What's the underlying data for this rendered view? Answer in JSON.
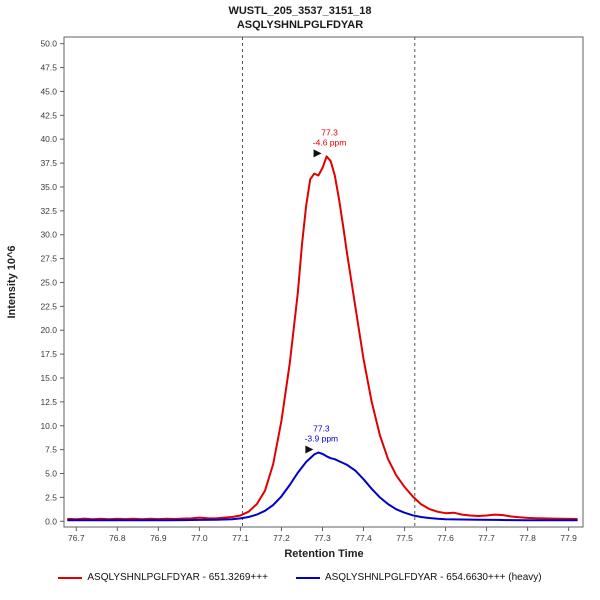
{
  "header": {
    "title_line1": "WUSTL_205_3537_3151_18",
    "title_line2": "ASQLYSHNLPGLFDYAR"
  },
  "chart_data": {
    "type": "line",
    "title": "WUSTL_205_3537_3151_18",
    "subtitle": "ASQLYSHNLPGLFDYAR",
    "xlabel": "Retention Time",
    "ylabel": "Intensity 10^6",
    "xlim": [
      76.7,
      77.9
    ],
    "ylim": [
      0,
      50
    ],
    "x_ticks": [
      76.7,
      76.8,
      76.9,
      77.0,
      77.1,
      77.2,
      77.3,
      77.4,
      77.5,
      77.6,
      77.7,
      77.8,
      77.9
    ],
    "y_ticks": [
      0.0,
      2.5,
      5.0,
      7.5,
      10.0,
      12.5,
      15.0,
      17.5,
      20.0,
      22.5,
      25.0,
      27.5,
      30.0,
      32.5,
      35.0,
      37.5,
      40.0,
      42.5,
      45.0,
      47.5,
      50.0
    ],
    "grid": false,
    "legend_position": "bottom",
    "integration_boundaries": [
      77.105,
      77.525
    ],
    "boundary_style": "dashed",
    "series": [
      {
        "name": "ASQLYSHNLPGLFDYAR - 651.3269+++",
        "color": "#e00000",
        "points": [
          [
            76.68,
            0.25
          ],
          [
            76.7,
            0.22
          ],
          [
            76.72,
            0.28
          ],
          [
            76.74,
            0.22
          ],
          [
            76.76,
            0.26
          ],
          [
            76.78,
            0.22
          ],
          [
            76.8,
            0.27
          ],
          [
            76.82,
            0.23
          ],
          [
            76.84,
            0.26
          ],
          [
            76.86,
            0.22
          ],
          [
            76.88,
            0.26
          ],
          [
            76.9,
            0.23
          ],
          [
            76.92,
            0.27
          ],
          [
            76.94,
            0.24
          ],
          [
            76.96,
            0.28
          ],
          [
            76.98,
            0.3
          ],
          [
            77.0,
            0.38
          ],
          [
            77.02,
            0.32
          ],
          [
            77.04,
            0.3
          ],
          [
            77.06,
            0.38
          ],
          [
            77.08,
            0.45
          ],
          [
            77.1,
            0.6
          ],
          [
            77.12,
            1.0
          ],
          [
            77.14,
            1.8
          ],
          [
            77.16,
            3.2
          ],
          [
            77.18,
            6.0
          ],
          [
            77.2,
            10.5
          ],
          [
            77.22,
            16.5
          ],
          [
            77.24,
            24.0
          ],
          [
            77.25,
            29.0
          ],
          [
            77.26,
            33.0
          ],
          [
            77.27,
            35.8
          ],
          [
            77.28,
            36.4
          ],
          [
            77.29,
            36.2
          ],
          [
            77.3,
            37.0
          ],
          [
            77.31,
            38.2
          ],
          [
            77.32,
            37.7
          ],
          [
            77.33,
            36.2
          ],
          [
            77.34,
            33.8
          ],
          [
            77.35,
            31.0
          ],
          [
            77.36,
            28.0
          ],
          [
            77.38,
            22.5
          ],
          [
            77.4,
            17.0
          ],
          [
            77.42,
            12.5
          ],
          [
            77.44,
            9.0
          ],
          [
            77.46,
            6.5
          ],
          [
            77.48,
            4.8
          ],
          [
            77.5,
            3.6
          ],
          [
            77.52,
            2.6
          ],
          [
            77.54,
            1.8
          ],
          [
            77.56,
            1.3
          ],
          [
            77.58,
            1.0
          ],
          [
            77.6,
            0.85
          ],
          [
            77.62,
            0.9
          ],
          [
            77.64,
            0.7
          ],
          [
            77.66,
            0.6
          ],
          [
            77.68,
            0.55
          ],
          [
            77.7,
            0.6
          ],
          [
            77.72,
            0.7
          ],
          [
            77.74,
            0.65
          ],
          [
            77.76,
            0.5
          ],
          [
            77.78,
            0.42
          ],
          [
            77.8,
            0.35
          ],
          [
            77.82,
            0.32
          ],
          [
            77.84,
            0.3
          ],
          [
            77.86,
            0.28
          ],
          [
            77.88,
            0.26
          ],
          [
            77.9,
            0.25
          ],
          [
            77.92,
            0.24
          ]
        ]
      },
      {
        "name": "ASQLYSHNLPGLFDYAR - 654.6630+++ (heavy)",
        "color": "#0000cc",
        "points": [
          [
            76.68,
            0.1
          ],
          [
            76.72,
            0.12
          ],
          [
            76.76,
            0.1
          ],
          [
            76.8,
            0.12
          ],
          [
            76.84,
            0.1
          ],
          [
            76.88,
            0.12
          ],
          [
            76.92,
            0.1
          ],
          [
            76.96,
            0.12
          ],
          [
            77.0,
            0.14
          ],
          [
            77.04,
            0.16
          ],
          [
            77.08,
            0.22
          ],
          [
            77.1,
            0.3
          ],
          [
            77.12,
            0.45
          ],
          [
            77.14,
            0.7
          ],
          [
            77.16,
            1.1
          ],
          [
            77.18,
            1.7
          ],
          [
            77.2,
            2.6
          ],
          [
            77.22,
            3.8
          ],
          [
            77.24,
            5.1
          ],
          [
            77.26,
            6.2
          ],
          [
            77.28,
            7.0
          ],
          [
            77.29,
            7.2
          ],
          [
            77.3,
            7.05
          ],
          [
            77.31,
            6.8
          ],
          [
            77.32,
            6.6
          ],
          [
            77.33,
            6.5
          ],
          [
            77.34,
            6.3
          ],
          [
            77.35,
            6.1
          ],
          [
            77.36,
            5.9
          ],
          [
            77.38,
            5.3
          ],
          [
            77.4,
            4.4
          ],
          [
            77.42,
            3.4
          ],
          [
            77.44,
            2.5
          ],
          [
            77.46,
            1.8
          ],
          [
            77.48,
            1.25
          ],
          [
            77.5,
            0.9
          ],
          [
            77.52,
            0.62
          ],
          [
            77.54,
            0.45
          ],
          [
            77.56,
            0.34
          ],
          [
            77.58,
            0.27
          ],
          [
            77.6,
            0.22
          ],
          [
            77.64,
            0.18
          ],
          [
            77.68,
            0.15
          ],
          [
            77.72,
            0.14
          ],
          [
            77.76,
            0.12
          ],
          [
            77.8,
            0.11
          ],
          [
            77.84,
            0.1
          ],
          [
            77.88,
            0.1
          ],
          [
            77.92,
            0.1
          ]
        ]
      }
    ],
    "annotations": [
      {
        "label_time": "77.3",
        "label_ppm": "-4.6 ppm",
        "x": 77.31,
        "y": 38.2,
        "color": "#e00000"
      },
      {
        "label_time": "77.3",
        "label_ppm": "-3.9 ppm",
        "x": 77.29,
        "y": 7.2,
        "color": "#0000cc"
      }
    ]
  },
  "legend": {
    "items": [
      {
        "label": "ASQLYSHNLPGLFDYAR - 651.3269+++",
        "color": "#e00000"
      },
      {
        "label": "ASQLYSHNLPGLFDYAR - 654.6630+++ (heavy)",
        "color": "#0000cc"
      }
    ]
  }
}
